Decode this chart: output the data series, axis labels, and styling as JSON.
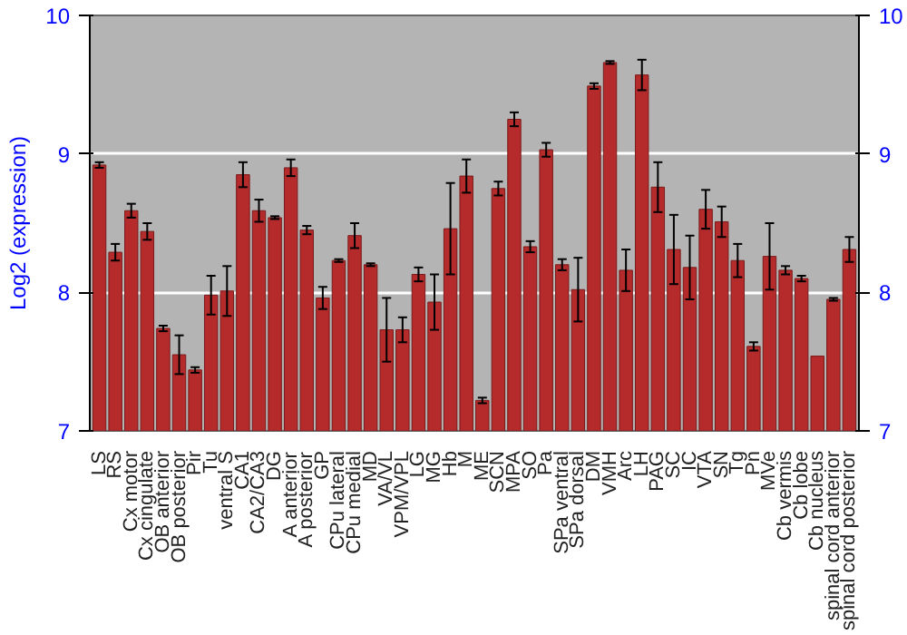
{
  "chart_data": {
    "type": "bar",
    "ylabel": "Log2 (expression)",
    "categories": [
      "LS",
      "RS",
      "Cx motor",
      "Cx cingulate",
      "OB anterior",
      "OB posterior",
      "Pir",
      "Tu",
      "ventral S",
      "CA1",
      "CA2/CA3",
      "DG",
      "A anterior",
      "A posterior",
      "GP",
      "CPu lateral",
      "CPu medial",
      "MD",
      "VA/VL",
      "VPM/VPL",
      "LG",
      "MG",
      "Hb",
      "M",
      "ME",
      "SCN",
      "MPA",
      "SO",
      "Pa",
      "SPa ventral",
      "SPa dorsal",
      "DM",
      "VMH",
      "Arc",
      "LH",
      "PAG",
      "SC",
      "IC",
      "VTA",
      "SN",
      "Tg",
      "Pn",
      "MVe",
      "Cb vermis",
      "Cb lobe",
      "Cb nucleus",
      "spinal cord anterior",
      "spinal cord posterior"
    ],
    "values": [
      8.92,
      8.29,
      8.59,
      8.44,
      7.74,
      7.55,
      7.44,
      7.98,
      8.01,
      8.85,
      8.59,
      8.54,
      8.9,
      8.45,
      7.96,
      8.23,
      8.41,
      8.2,
      7.73,
      7.73,
      8.13,
      7.93,
      8.46,
      8.84,
      7.22,
      8.75,
      9.25,
      8.33,
      9.03,
      8.2,
      8.02,
      9.49,
      9.66,
      8.16,
      9.57,
      8.76,
      8.31,
      8.18,
      8.6,
      8.51,
      8.23,
      7.61,
      8.26,
      8.16,
      8.1,
      7.54,
      7.95,
      8.31
    ],
    "errors": [
      0.02,
      0.06,
      0.05,
      0.06,
      0.02,
      0.14,
      0.02,
      0.14,
      0.18,
      0.09,
      0.08,
      0.01,
      0.06,
      0.03,
      0.08,
      0.01,
      0.09,
      0.01,
      0.23,
      0.09,
      0.05,
      0.2,
      0.33,
      0.12,
      0.02,
      0.05,
      0.05,
      0.04,
      0.05,
      0.04,
      0.23,
      0.02,
      0.01,
      0.15,
      0.11,
      0.18,
      0.25,
      0.23,
      0.14,
      0.11,
      0.12,
      0.03,
      0.24,
      0.03,
      0.02,
      null,
      0.01,
      0.09
    ],
    "color": "#b52a2a",
    "ylim": [
      7,
      10
    ],
    "yticks": [
      7,
      8,
      9,
      10
    ],
    "y2lim": [
      7,
      10
    ],
    "y2ticks": [
      7,
      8,
      9,
      10
    ],
    "grid": "y"
  }
}
